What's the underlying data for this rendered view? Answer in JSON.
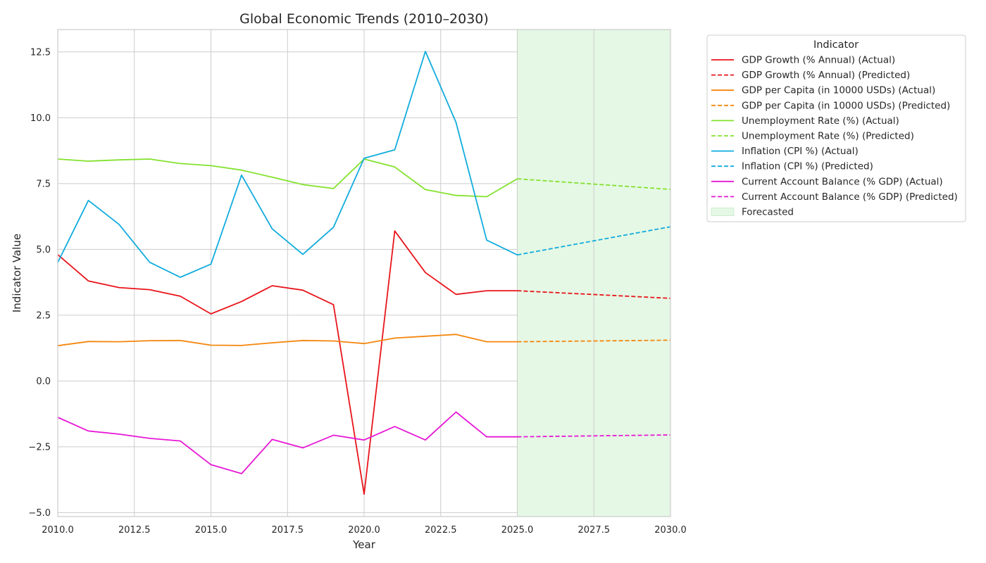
{
  "chart_data": {
    "type": "line",
    "title": "Global Economic Trends (2010–2030)",
    "xlabel": "Year",
    "ylabel": "Indicator Value",
    "xlim": [
      2010,
      2030
    ],
    "ylim": [
      -5.15,
      13.35
    ],
    "xticks": [
      2010,
      2012.5,
      2015,
      2017.5,
      2020,
      2022.5,
      2025,
      2027.5,
      2030
    ],
    "xtick_labels": [
      "2010.0",
      "2012.5",
      "2015.0",
      "2017.5",
      "2020.0",
      "2022.5",
      "2025.0",
      "2027.5",
      "2030.0"
    ],
    "yticks": [
      -5,
      -2.5,
      0,
      2.5,
      5,
      7.5,
      10,
      12.5
    ],
    "ytick_labels": [
      "−5.0",
      "−2.5",
      "0.0",
      "2.5",
      "5.0",
      "7.5",
      "10.0",
      "12.5"
    ],
    "grid": true,
    "forecast_region": {
      "x_start": 2025,
      "x_end": 2030,
      "label": "Forecasted",
      "color": "#e5f8e5"
    },
    "legend": {
      "title": "Indicator",
      "placement": "outside-top-right"
    },
    "series": [
      {
        "name": "GDP Growth (% Annual) (Actual)",
        "color": "#e8141a",
        "style": "solid",
        "x": [
          2010,
          2011,
          2012,
          2013,
          2014,
          2015,
          2016,
          2017,
          2018,
          2019,
          2020,
          2021,
          2022,
          2023,
          2024,
          2025
        ],
        "y": [
          4.8,
          3.8,
          3.55,
          3.47,
          3.22,
          2.55,
          3.02,
          3.62,
          3.45,
          2.9,
          -4.3,
          5.7,
          4.12,
          3.29,
          3.43,
          3.43
        ]
      },
      {
        "name": "GDP Growth (% Annual) (Predicted)",
        "color": "#e8141a",
        "style": "dashed",
        "x": [
          2025,
          2030
        ],
        "y": [
          3.43,
          3.14
        ]
      },
      {
        "name": "GDP per Capita (in 10000 USDs) (Actual)",
        "color": "#f4860c",
        "style": "solid",
        "x": [
          2010,
          2011,
          2012,
          2013,
          2014,
          2015,
          2016,
          2017,
          2018,
          2019,
          2020,
          2021,
          2022,
          2023,
          2024,
          2025
        ],
        "y": [
          1.34,
          1.5,
          1.49,
          1.53,
          1.54,
          1.36,
          1.35,
          1.45,
          1.54,
          1.52,
          1.42,
          1.63,
          1.7,
          1.77,
          1.49,
          1.49
        ]
      },
      {
        "name": "GDP per Capita (in 10000 USDs) (Predicted)",
        "color": "#f4860c",
        "style": "dashed",
        "x": [
          2025,
          2030
        ],
        "y": [
          1.49,
          1.55
        ]
      },
      {
        "name": "Unemployment Rate (%) (Actual)",
        "color": "#83e22e",
        "style": "solid",
        "x": [
          2010,
          2011,
          2012,
          2013,
          2014,
          2015,
          2016,
          2017,
          2018,
          2019,
          2020,
          2021,
          2022,
          2023,
          2024,
          2025
        ],
        "y": [
          8.43,
          8.35,
          8.4,
          8.43,
          8.26,
          8.18,
          8.01,
          7.74,
          7.46,
          7.31,
          8.43,
          8.13,
          7.27,
          7.05,
          7.0,
          7.68
        ]
      },
      {
        "name": "Unemployment Rate (%) (Predicted)",
        "color": "#83e22e",
        "style": "dashed",
        "x": [
          2025,
          2030
        ],
        "y": [
          7.68,
          7.28
        ]
      },
      {
        "name": "Inflation (CPI %) (Actual)",
        "color": "#11acdd",
        "style": "solid",
        "x": [
          2010,
          2011,
          2012,
          2013,
          2014,
          2015,
          2016,
          2017,
          2018,
          2019,
          2020,
          2021,
          2022,
          2023,
          2024,
          2025
        ],
        "y": [
          4.5,
          6.86,
          5.95,
          4.51,
          3.94,
          4.44,
          7.82,
          5.78,
          4.81,
          5.84,
          8.46,
          8.78,
          12.52,
          9.82,
          5.35,
          4.79
        ]
      },
      {
        "name": "Inflation (CPI %) (Predicted)",
        "color": "#11acdd",
        "style": "dashed",
        "x": [
          2025,
          2030
        ],
        "y": [
          4.79,
          5.86
        ]
      },
      {
        "name": "Current Account Balance (% GDP) (Actual)",
        "color": "#e618d6",
        "style": "solid",
        "x": [
          2010,
          2011,
          2012,
          2013,
          2014,
          2015,
          2016,
          2017,
          2018,
          2019,
          2020,
          2021,
          2022,
          2023,
          2024,
          2025
        ],
        "y": [
          -1.38,
          -1.9,
          -2.02,
          -2.18,
          -2.28,
          -3.18,
          -3.52,
          -2.22,
          -2.54,
          -2.06,
          -2.24,
          -1.73,
          -2.24,
          -1.18,
          -2.12,
          -2.12
        ]
      },
      {
        "name": "Current Account Balance (% GDP) (Predicted)",
        "color": "#e618d6",
        "style": "dashed",
        "x": [
          2025,
          2030
        ],
        "y": [
          -2.12,
          -2.05
        ]
      }
    ]
  }
}
